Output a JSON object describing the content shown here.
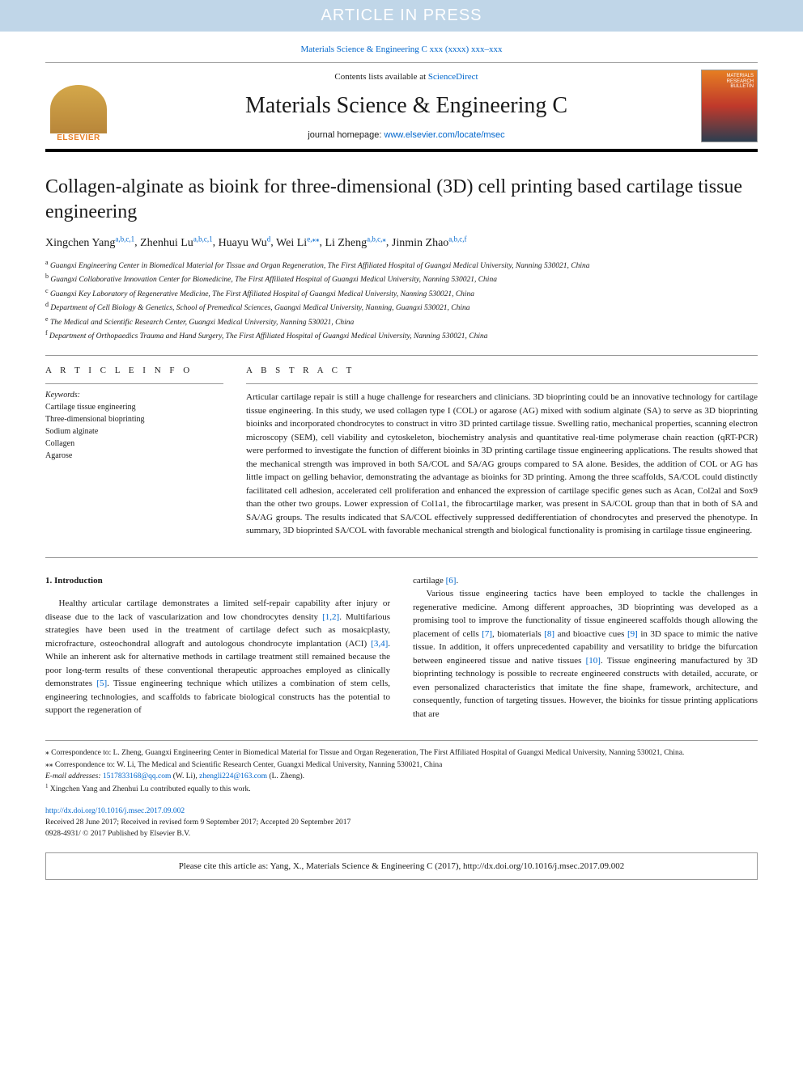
{
  "banner": "ARTICLE IN PRESS",
  "journalRef": {
    "text": "Materials Science & Engineering C xxx (xxxx) xxx–xxx",
    "link": "Materials Science & Engineering C xxx (xxxx) xxx–xxx"
  },
  "header": {
    "contentsLists": "Contents lists available at ",
    "scienceDirect": "ScienceDirect",
    "journalName": "Materials Science & Engineering C",
    "homepageLabel": "journal homepage: ",
    "homepageUrl": "www.elsevier.com/locate/msec",
    "publisherLogo": "ELSEVIER",
    "coverTitle": "MATERIALS RESEARCH BULLETIN"
  },
  "article": {
    "title": "Collagen-alginate as bioink for three-dimensional (3D) cell printing based cartilage tissue engineering",
    "authors": [
      {
        "name": "Xingchen Yang",
        "sup": "a,b,c,1"
      },
      {
        "name": "Zhenhui Lu",
        "sup": "a,b,c,1"
      },
      {
        "name": "Huayu Wu",
        "sup": "d"
      },
      {
        "name": "Wei Li",
        "sup": "e,⁎⁎"
      },
      {
        "name": "Li Zheng",
        "sup": "a,b,c,⁎"
      },
      {
        "name": "Jinmin Zhao",
        "sup": "a,b,c,f"
      }
    ],
    "affiliations": [
      {
        "sup": "a",
        "text": "Guangxi Engineering Center in Biomedical Material for Tissue and Organ Regeneration, The First Affiliated Hospital of Guangxi Medical University, Nanning 530021, China"
      },
      {
        "sup": "b",
        "text": "Guangxi Collaborative Innovation Center for Biomedicine, The First Affiliated Hospital of Guangxi Medical University, Nanning 530021, China"
      },
      {
        "sup": "c",
        "text": "Guangxi Key Laboratory of Regenerative Medicine, The First Affiliated Hospital of Guangxi Medical University, Nanning 530021, China"
      },
      {
        "sup": "d",
        "text": "Department of Cell Biology & Genetics, School of Premedical Sciences, Guangxi Medical University, Nanning, Guangxi 530021, China"
      },
      {
        "sup": "e",
        "text": "The Medical and Scientific Research Center, Guangxi Medical University, Nanning 530021, China"
      },
      {
        "sup": "f",
        "text": "Department of Orthopaedics Trauma and Hand Surgery, The First Affiliated Hospital of Guangxi Medical University, Nanning 530021, China"
      }
    ]
  },
  "sections": {
    "articleInfo": "A R T I C L E  I N F O",
    "abstract": "A B S T R A C T",
    "keywordsLabel": "Keywords:",
    "keywords": [
      "Cartilage tissue engineering",
      "Three-dimensional bioprinting",
      "Sodium alginate",
      "Collagen",
      "Agarose"
    ],
    "abstractText": "Articular cartilage repair is still a huge challenge for researchers and clinicians. 3D bioprinting could be an innovative technology for cartilage tissue engineering. In this study, we used collagen type I (COL) or agarose (AG) mixed with sodium alginate (SA) to serve as 3D bioprinting bioinks and incorporated chondrocytes to construct in vitro 3D printed cartilage tissue. Swelling ratio, mechanical properties, scanning electron microscopy (SEM), cell viability and cytoskeleton, biochemistry analysis and quantitative real-time polymerase chain reaction (qRT-PCR) were performed to investigate the function of different bioinks in 3D printing cartilage tissue engineering applications. The results showed that the mechanical strength was improved in both SA/COL and SA/AG groups compared to SA alone. Besides, the addition of COL or AG has little impact on gelling behavior, demonstrating the advantage as bioinks for 3D printing. Among the three scaffolds, SA/COL could distinctly facilitated cell adhesion, accelerated cell proliferation and enhanced the expression of cartilage specific genes such as Acan, Col2al and Sox9 than the other two groups. Lower expression of Col1a1, the fibrocartilage marker, was present in SA/COL group than that in both of SA and SA/AG groups. The results indicated that SA/COL effectively suppressed dedifferentiation of chondrocytes and preserved the phenotype. In summary, 3D bioprinted SA/COL with favorable mechanical strength and biological functionality is promising in cartilage tissue engineering."
  },
  "introduction": {
    "heading": "1. Introduction",
    "col1p1": "Healthy articular cartilage demonstrates a limited self-repair capability after injury or disease due to the lack of vascularization and low chondrocytes density ",
    "ref12": "[1,2]",
    "col1p1b": ". Multifarious strategies have been used in the treatment of cartilage defect such as mosaicplasty, microfracture, osteochondral allograft and autologous chondrocyte implantation (ACI) ",
    "ref34": "[3,4]",
    "col1p1c": ". While an inherent ask for alternative methods in cartilage treatment still remained because the poor long-term results of these conventional therapeutic approaches employed as clinically demonstrates ",
    "ref5": "[5]",
    "col1p1d": ". Tissue engineering technique which utilizes a combination of stem cells, engineering technologies, and scaffolds to fabricate biological constructs has the potential to support the regeneration of",
    "col2p1a": "cartilage ",
    "ref6": "[6]",
    "col2p1b": ".",
    "col2p2a": "Various tissue engineering tactics have been employed to tackle the challenges in regenerative medicine. Among different approaches, 3D bioprinting was developed as a promising tool to improve the functionality of tissue engineered scaffolds though allowing the placement of cells ",
    "ref7": "[7]",
    "col2p2b": ", biomaterials ",
    "ref8": "[8]",
    "col2p2c": " and bioactive cues ",
    "ref9": "[9]",
    "col2p2d": " in 3D space to mimic the native tissue. In addition, it offers unprecedented capability and versatility to bridge the bifurcation between engineered tissue and native tissues ",
    "ref10": "[10]",
    "col2p2e": ". Tissue engineering manufactured by 3D bioprinting technology is possible to recreate engineered constructs with detailed, accurate, or even personalized characteristics that imitate the fine shape, framework, architecture, and consequently, function of targeting tissues. However, the bioinks for tissue printing applications that are"
  },
  "footnotes": {
    "corr1": "⁎ Correspondence to: L. Zheng, Guangxi Engineering Center in Biomedical Material for Tissue and Organ Regeneration, The First Affiliated Hospital of Guangxi Medical University, Nanning 530021, China.",
    "corr2": "⁎⁎ Correspondence to: W. Li, The Medical and Scientific Research Center, Guangxi Medical University, Nanning 530021, China",
    "emailLabel": "E-mail addresses: ",
    "email1": "1517833168@qq.com",
    "email1who": " (W. Li), ",
    "email2": "zhengli224@163.com",
    "email2who": " (L. Zheng).",
    "equal": "Xingchen Yang and Zhenhui Lu contributed equally to this work.",
    "equalSup": "1"
  },
  "doi": {
    "url": "http://dx.doi.org/10.1016/j.msec.2017.09.002",
    "dates": "Received 28 June 2017; Received in revised form 9 September 2017; Accepted 20 September 2017",
    "copyright": "0928-4931/ © 2017 Published by Elsevier B.V."
  },
  "citeBox": "Please cite this article as: Yang, X., Materials Science & Engineering C (2017), http://dx.doi.org/10.1016/j.msec.2017.09.002",
  "colors": {
    "bannerBg": "#c0d6e8",
    "link": "#0066cc",
    "elsevierOrange": "#e67e22"
  }
}
